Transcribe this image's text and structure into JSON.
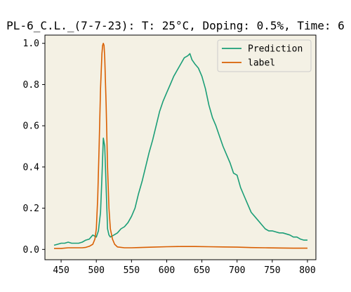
{
  "chart_data": {
    "type": "line",
    "title": "PL-6_C.L._(7-7-23): T: 25°C, Doping: 0.5%, Time: 6",
    "xlabel": "",
    "ylabel": "",
    "xlim": [
      427,
      812
    ],
    "ylim": [
      -0.05,
      1.04
    ],
    "x_ticks": [
      450,
      500,
      550,
      600,
      650,
      700,
      750,
      800
    ],
    "y_ticks": [
      0.0,
      0.2,
      0.4,
      0.6,
      0.8,
      1.0
    ],
    "x_tick_labels": [
      "450",
      "500",
      "550",
      "600",
      "650",
      "700",
      "750",
      "800"
    ],
    "y_tick_labels": [
      "0.0",
      "0.2",
      "0.4",
      "0.6",
      "0.8",
      "1.0"
    ],
    "grid": false,
    "legend_position": "top-right",
    "background": "#f4f1e4",
    "series": [
      {
        "name": "Prediction",
        "color": "#1b9e77",
        "x": [
          440,
          445,
          450,
          455,
          460,
          465,
          470,
          475,
          480,
          485,
          490,
          495,
          500,
          503,
          506,
          508,
          510,
          512,
          514,
          516,
          518,
          520,
          525,
          530,
          535,
          540,
          545,
          550,
          555,
          560,
          565,
          570,
          575,
          580,
          585,
          590,
          595,
          600,
          605,
          610,
          615,
          620,
          625,
          630,
          633,
          636,
          640,
          645,
          650,
          655,
          660,
          665,
          670,
          675,
          680,
          685,
          690,
          695,
          700,
          705,
          710,
          715,
          720,
          725,
          730,
          735,
          740,
          745,
          750,
          755,
          760,
          765,
          770,
          775,
          780,
          785,
          790,
          795,
          800
        ],
        "y": [
          0.02,
          0.025,
          0.03,
          0.03,
          0.035,
          0.03,
          0.03,
          0.03,
          0.035,
          0.045,
          0.05,
          0.07,
          0.06,
          0.09,
          0.18,
          0.35,
          0.54,
          0.5,
          0.3,
          0.1,
          0.07,
          0.06,
          0.07,
          0.08,
          0.1,
          0.11,
          0.13,
          0.16,
          0.2,
          0.27,
          0.33,
          0.4,
          0.47,
          0.53,
          0.6,
          0.67,
          0.72,
          0.76,
          0.8,
          0.84,
          0.87,
          0.9,
          0.93,
          0.94,
          0.95,
          0.92,
          0.9,
          0.88,
          0.84,
          0.78,
          0.7,
          0.64,
          0.6,
          0.55,
          0.5,
          0.46,
          0.42,
          0.37,
          0.36,
          0.3,
          0.26,
          0.22,
          0.18,
          0.16,
          0.14,
          0.12,
          0.1,
          0.09,
          0.09,
          0.085,
          0.08,
          0.08,
          0.075,
          0.07,
          0.06,
          0.06,
          0.05,
          0.045,
          0.045
        ]
      },
      {
        "name": "label",
        "color": "#d95f02",
        "x": [
          440,
          450,
          460,
          470,
          480,
          485,
          490,
          495,
          498,
          500,
          502,
          504,
          506,
          508,
          509,
          510,
          511,
          512,
          514,
          516,
          518,
          520,
          523,
          526,
          530,
          540,
          550,
          560,
          580,
          600,
          620,
          640,
          660,
          680,
          700,
          720,
          740,
          760,
          780,
          800
        ],
        "y": [
          0.005,
          0.005,
          0.008,
          0.008,
          0.008,
          0.01,
          0.015,
          0.025,
          0.05,
          0.1,
          0.25,
          0.5,
          0.78,
          0.95,
          0.99,
          1.0,
          0.99,
          0.93,
          0.7,
          0.4,
          0.2,
          0.1,
          0.05,
          0.025,
          0.012,
          0.008,
          0.008,
          0.009,
          0.011,
          0.013,
          0.014,
          0.014,
          0.013,
          0.012,
          0.011,
          0.009,
          0.008,
          0.007,
          0.006,
          0.006
        ]
      }
    ]
  }
}
